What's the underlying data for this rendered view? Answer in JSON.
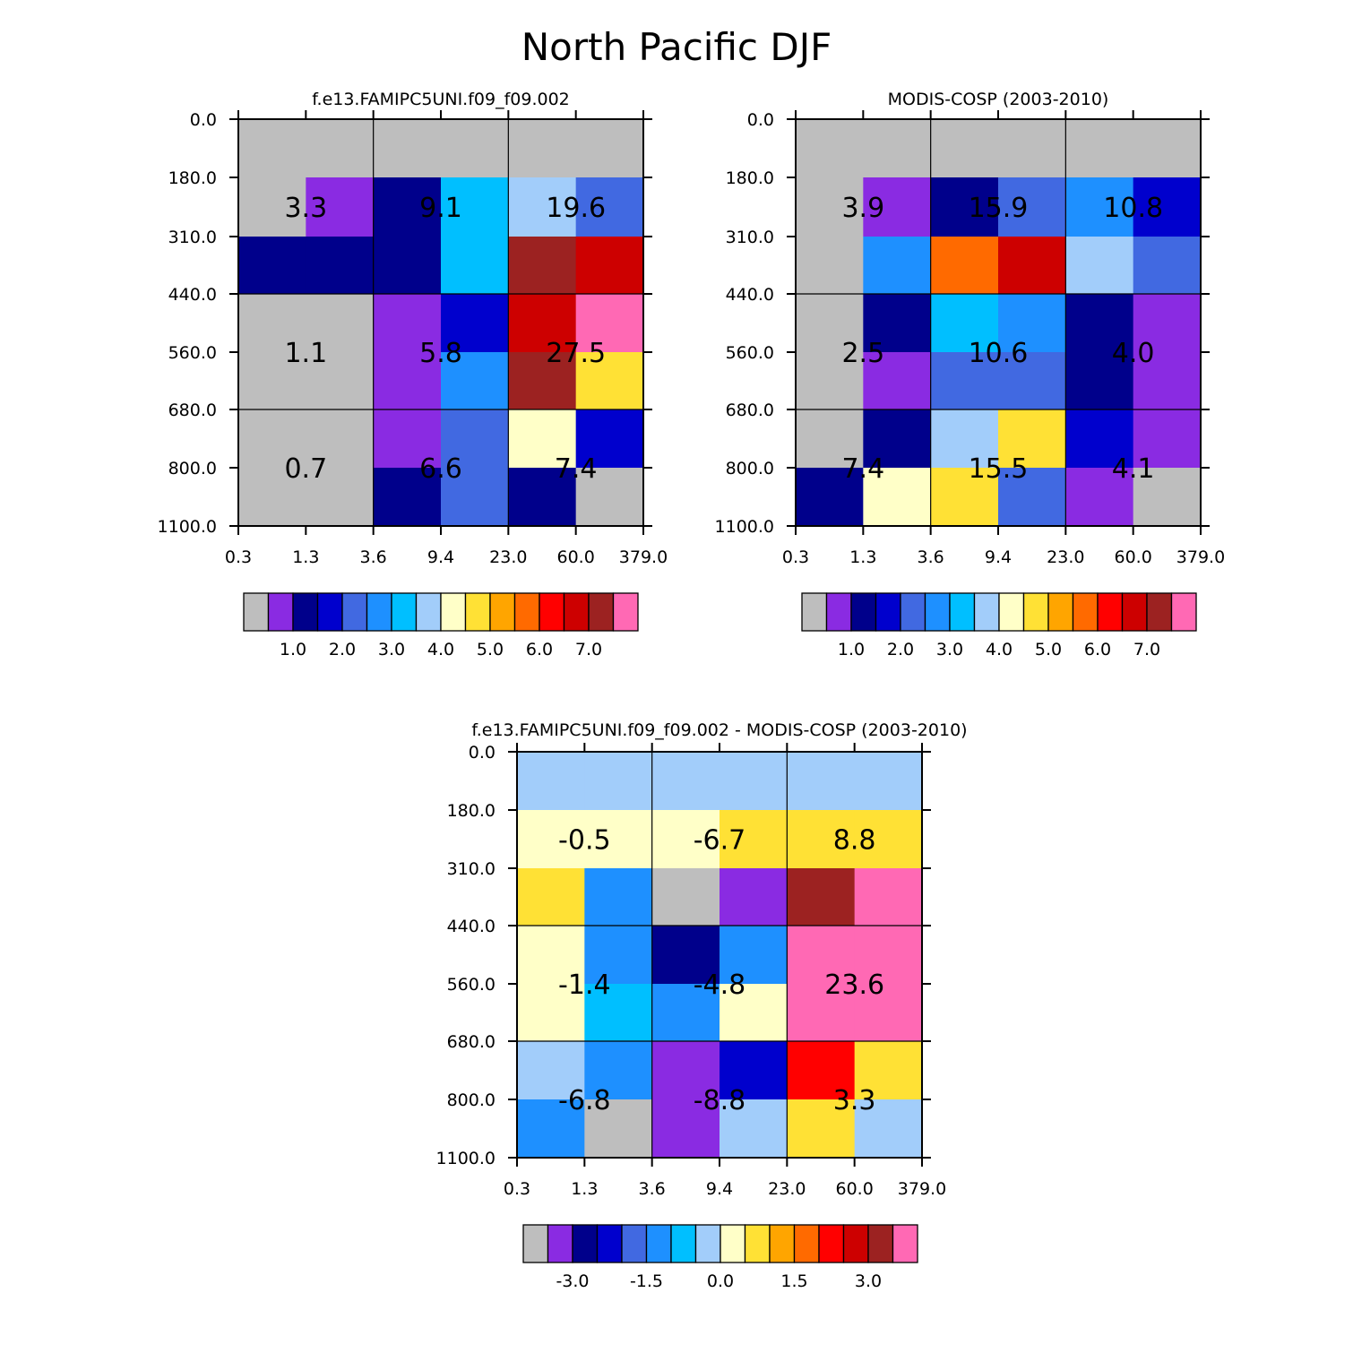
{
  "title": "North Pacific DJF",
  "palettes": {
    "p1": [
      "#bebebe",
      "#8a2be2",
      "#00008b",
      "#0000cd",
      "#4169e1",
      "#1e90ff",
      "#00bfff",
      "#a2cdfa",
      "#ffffc8",
      "#ffe135",
      "#ffa500",
      "#ff6a00",
      "#ff0000",
      "#cd0000",
      "#9c2221",
      "#ff69b4"
    ]
  },
  "chart_data": [
    {
      "type": "heatmap",
      "title": "f.e13.FAMIPC5UNI.f09_f09.002",
      "x_ticks": [
        "0.3",
        "1.3",
        "3.6",
        "9.4",
        "23.0",
        "60.0",
        "379.0"
      ],
      "y_ticks": [
        "0.0",
        "180.0",
        "310.0",
        "440.0",
        "560.0",
        "680.0",
        "800.0",
        "1100.0"
      ],
      "cells": [
        [
          0,
          0,
          0,
          0,
          0,
          0
        ],
        [
          0,
          1,
          2,
          6,
          7,
          4
        ],
        [
          2,
          2,
          2,
          6,
          14,
          13
        ],
        [
          0,
          0,
          1,
          3,
          13,
          15
        ],
        [
          0,
          0,
          1,
          5,
          14,
          9
        ],
        [
          0,
          0,
          1,
          4,
          8,
          3
        ],
        [
          0,
          0,
          2,
          4,
          2,
          0
        ]
      ],
      "labels": [
        {
          "text": "3.3",
          "col": 1,
          "row": 1.5
        },
        {
          "text": "9.1",
          "col": 3,
          "row": 1.5
        },
        {
          "text": "19.6",
          "col": 5,
          "row": 1.5
        },
        {
          "text": "1.1",
          "col": 1,
          "row": 4
        },
        {
          "text": "5.8",
          "col": 3,
          "row": 4
        },
        {
          "text": "27.5",
          "col": 5,
          "row": 4
        },
        {
          "text": "0.7",
          "col": 1,
          "row": 6
        },
        {
          "text": "6.6",
          "col": 3,
          "row": 6
        },
        {
          "text": "7.4",
          "col": 5,
          "row": 6
        }
      ],
      "colorbar": {
        "palette": "p1",
        "ticks": [
          "1.0",
          "2.0",
          "3.0",
          "4.0",
          "5.0",
          "6.0",
          "7.0"
        ]
      }
    },
    {
      "type": "heatmap",
      "title": "MODIS-COSP (2003-2010)",
      "x_ticks": [
        "0.3",
        "1.3",
        "3.6",
        "9.4",
        "23.0",
        "60.0",
        "379.0"
      ],
      "y_ticks": [
        "0.0",
        "180.0",
        "310.0",
        "440.0",
        "560.0",
        "680.0",
        "800.0",
        "1100.0"
      ],
      "cells": [
        [
          0,
          0,
          0,
          0,
          0,
          0
        ],
        [
          0,
          1,
          2,
          4,
          5,
          3
        ],
        [
          0,
          5,
          11,
          13,
          7,
          4
        ],
        [
          0,
          2,
          6,
          5,
          2,
          1
        ],
        [
          0,
          1,
          4,
          4,
          2,
          1
        ],
        [
          0,
          2,
          7,
          9,
          3,
          1
        ],
        [
          2,
          8,
          9,
          4,
          1,
          0
        ]
      ],
      "labels": [
        {
          "text": "3.9",
          "col": 1,
          "row": 1.5
        },
        {
          "text": "15.9",
          "col": 3,
          "row": 1.5
        },
        {
          "text": "10.8",
          "col": 5,
          "row": 1.5
        },
        {
          "text": "2.5",
          "col": 1,
          "row": 4
        },
        {
          "text": "10.6",
          "col": 3,
          "row": 4
        },
        {
          "text": "4.0",
          "col": 5,
          "row": 4
        },
        {
          "text": "7.4",
          "col": 1,
          "row": 6
        },
        {
          "text": "15.5",
          "col": 3,
          "row": 6
        },
        {
          "text": "4.1",
          "col": 5,
          "row": 6
        }
      ],
      "colorbar": {
        "palette": "p1",
        "ticks": [
          "1.0",
          "2.0",
          "3.0",
          "4.0",
          "5.0",
          "6.0",
          "7.0"
        ]
      }
    },
    {
      "type": "heatmap",
      "title": "f.e13.FAMIPC5UNI.f09_f09.002 - MODIS-COSP (2003-2010)",
      "x_ticks": [
        "0.3",
        "1.3",
        "3.6",
        "9.4",
        "23.0",
        "60.0",
        "379.0"
      ],
      "y_ticks": [
        "0.0",
        "180.0",
        "310.0",
        "440.0",
        "560.0",
        "680.0",
        "800.0",
        "1100.0"
      ],
      "cells": [
        [
          7,
          7,
          7,
          7,
          7,
          7
        ],
        [
          8,
          8,
          8,
          9,
          9,
          9
        ],
        [
          9,
          5,
          0,
          1,
          14,
          15
        ],
        [
          8,
          5,
          2,
          5,
          15,
          15
        ],
        [
          8,
          6,
          5,
          8,
          15,
          15
        ],
        [
          7,
          5,
          1,
          3,
          12,
          9
        ],
        [
          5,
          0,
          1,
          7,
          9,
          7
        ]
      ],
      "labels": [
        {
          "text": "-0.5",
          "col": 1,
          "row": 1.5
        },
        {
          "text": "-6.7",
          "col": 3,
          "row": 1.5
        },
        {
          "text": "8.8",
          "col": 5,
          "row": 1.5
        },
        {
          "text": "-1.4",
          "col": 1,
          "row": 4
        },
        {
          "text": "-4.8",
          "col": 3,
          "row": 4
        },
        {
          "text": "23.6",
          "col": 5,
          "row": 4
        },
        {
          "text": "-6.8",
          "col": 1,
          "row": 6
        },
        {
          "text": "-8.8",
          "col": 3,
          "row": 6
        },
        {
          "text": "3.3",
          "col": 5,
          "row": 6
        }
      ],
      "colorbar": {
        "palette": "p1",
        "ticks": [
          "-3.0",
          "-1.5",
          "0.0",
          "1.5",
          "3.0"
        ]
      }
    }
  ]
}
